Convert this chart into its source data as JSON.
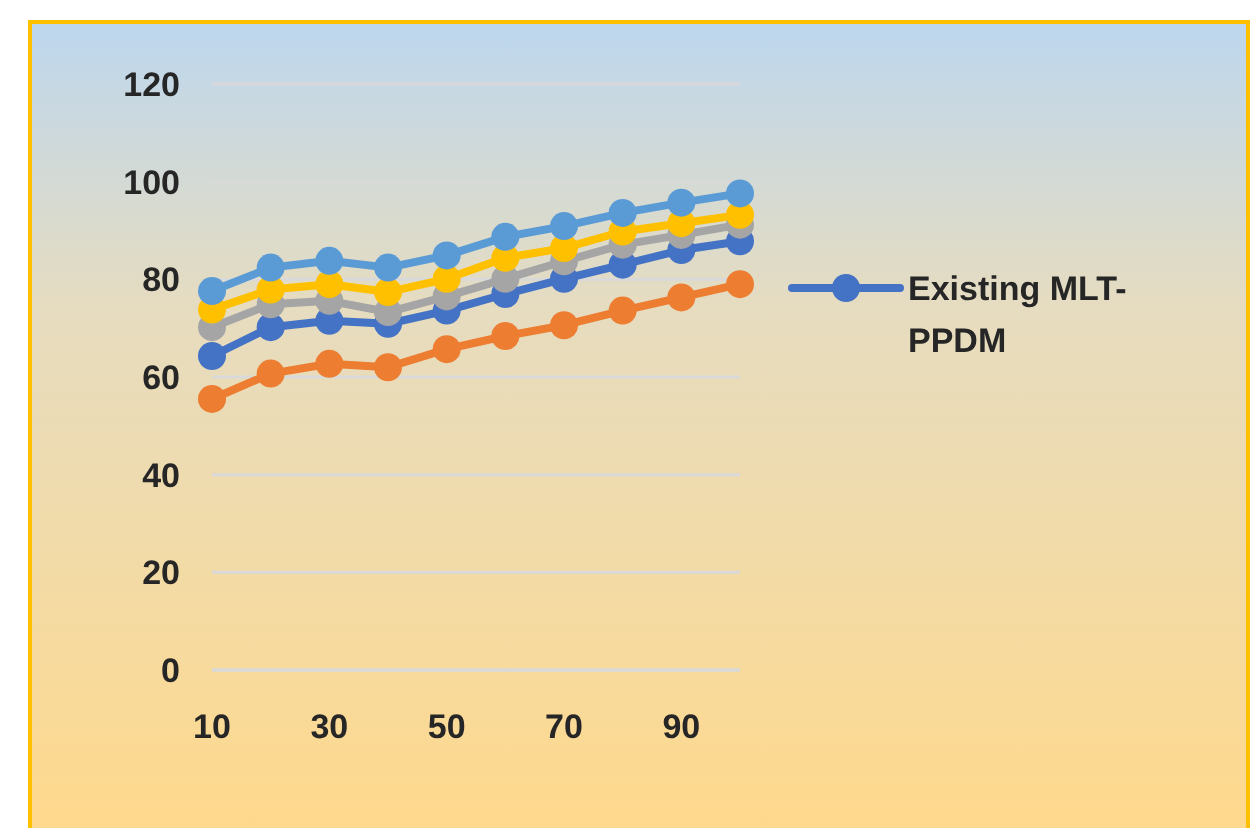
{
  "chart_data": {
    "type": "line",
    "categories": [
      "10",
      null,
      "30",
      null,
      "50",
      null,
      "70",
      null,
      "90",
      null
    ],
    "series": [
      {
        "name": "Existing MLT-PPDM",
        "color": "#4472c4",
        "values": [
          64.3,
          70.2,
          71.5,
          70.9,
          73.6,
          77.0,
          80.1,
          83.0,
          86.0,
          87.8
        ]
      },
      {
        "color": "#ed7d31",
        "values": [
          55.5,
          60.7,
          62.7,
          62.0,
          65.7,
          68.4,
          70.6,
          73.6,
          76.3,
          79.0
        ]
      },
      {
        "color": "#a5a5a5",
        "values": [
          70.2,
          74.9,
          75.6,
          73.3,
          76.5,
          80.1,
          83.7,
          87.1,
          89.1,
          91.2
        ]
      },
      {
        "color": "#ffc000",
        "values": [
          73.8,
          77.9,
          79.0,
          77.4,
          80.1,
          84.4,
          86.4,
          89.8,
          91.5,
          93.2
        ]
      },
      {
        "color": "#5b9bd5",
        "values": [
          77.6,
          82.4,
          83.8,
          82.4,
          84.9,
          88.7,
          90.9,
          93.6,
          95.7,
          97.6
        ]
      }
    ],
    "ylim": [
      0,
      120
    ],
    "yticks": [
      0,
      20,
      40,
      60,
      80,
      100,
      120
    ],
    "grid": "y",
    "legend": "right",
    "marker": "circle",
    "line_style": "solid"
  }
}
